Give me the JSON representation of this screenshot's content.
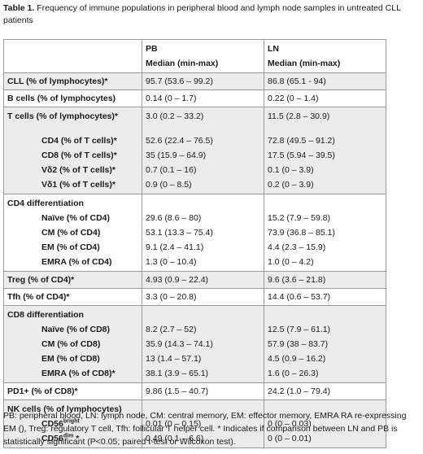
{
  "caption": {
    "label": "Table 1.",
    "text": " Frequency of immune populations in peripheral blood and lymph node samples in untreated CLL patients"
  },
  "table": {
    "headers": {
      "pb_title": "PB",
      "pb_sub": "Median (min-max)",
      "ln_title": "LN",
      "ln_sub": "Median (min-max)"
    },
    "rows": {
      "cll": {
        "label": "CLL (% of lymphocytes)*",
        "pb": "95.7 (53.6 – 99.2)",
        "ln": "86.8 (65.1 - 94)"
      },
      "bcells": {
        "label": "B cells (% of lymphocytes)",
        "pb": "0.14 (0 – 1.7)",
        "ln": "0.22 (0 – 1.4)"
      },
      "tcells": {
        "label": "T cells (% of lymphocytes)*",
        "pb": "3.0 (0.2 – 33.2)",
        "ln": "11.5 (2.8 – 30.9)",
        "subs": [
          {
            "label": "CD4 (% of T cells)*",
            "pb": "52.6 (22.4 – 76.5)",
            "ln": "72.8 (49.5 – 91.2)"
          },
          {
            "label": "CD8 (% of T cells)*",
            "pb": "35 (15.9 – 64.9)",
            "ln": "17.5 (5.94 – 39.5)"
          },
          {
            "label": "Vδ2 (% of T cells)*",
            "pb": "0.7 (0.1 – 16)",
            "ln": "0.1 (0 – 3.9)"
          },
          {
            "label": "Vδ1 (% of T cells)*",
            "pb": "0.9 (0 – 8.5)",
            "ln": "0.2 (0 – 3.9)"
          }
        ]
      },
      "cd4diff": {
        "label": "CD4 differentiation",
        "subs": [
          {
            "label": "Naïve (% of CD4)",
            "pb": "29.6 (8.6 – 80)",
            "ln": "15.2 (7.9 – 59.8)"
          },
          {
            "label": "CM (% of CD4)",
            "pb": "53.1 (13.3 – 75.4)",
            "ln": "73.9 (36.8 – 85.1)"
          },
          {
            "label": "EM (% of CD4)",
            "pb": "9.1 (2.4 – 41.1)",
            "ln": "4.4 (2.3 – 15.9)"
          },
          {
            "label": "EMRA (% of CD4)",
            "pb": "1.3 (0 – 10.4)",
            "ln": "1.0 (0 – 4.2)"
          }
        ]
      },
      "treg": {
        "label": "Treg (% of CD4)*",
        "pb": "4.93 (0.9 – 22.4)",
        "ln": "9.6 (3.6 – 21.8)"
      },
      "tfh": {
        "label": "Tfh (% of CD4)*",
        "pb": "3.3 (0 – 20.8)",
        "ln": "14.4 (0.6 – 53.7)"
      },
      "cd8diff": {
        "label": "CD8 differentiation",
        "subs": [
          {
            "label": "Naïve (% of CD8)",
            "pb": "8.2 (2.7 – 52)",
            "ln": "12.5 (7.9 – 61.1)"
          },
          {
            "label": "CM (% of CD8)",
            "pb": "35.9 (14.3 – 74.1)",
            "ln": "57.9 (38 – 83.7)"
          },
          {
            "label": "EM (% of CD8)",
            "pb": "13 (1.4 – 57.1)",
            "ln": "4.5 (0.9 – 16.2)"
          },
          {
            "label": "EMRA (% of CD8)*",
            "pb": "38.1 (3.9 – 65.1)",
            "ln": "1.6 (0 – 26.3)"
          }
        ]
      },
      "pd1": {
        "label": "PD1+ (% of CD8)*",
        "pb": "9.86 (1.5 – 40.7)",
        "ln": "24.2 (1.0 – 79.4)"
      },
      "nk": {
        "label": "NK cells (% of lymphocytes)",
        "subs": [
          {
            "label_base": "CD56",
            "label_sup": "bright",
            "label_suffix": "",
            "pb": "0.01 (0 – 0.15)",
            "ln": "0 (0 – 0.03)"
          },
          {
            "label_base": "CD56",
            "label_sup": "dim",
            "label_suffix": " *",
            "pb": "0.49 (0.1 – 6.6)",
            "ln": "0 (0 – 0.01)"
          }
        ]
      }
    }
  },
  "footnote": "PB: peripheral blood, LN: lymph node, CM: central memory, EM: effector memory, EMRA RA re-expressing EM (), Treg: regulatory T cell, Tfh: follicular T helper cell. * Indicates if comparison between LN and PB is statistically significant (P<0.05; paired t-test or Wilcoxon test)."
}
